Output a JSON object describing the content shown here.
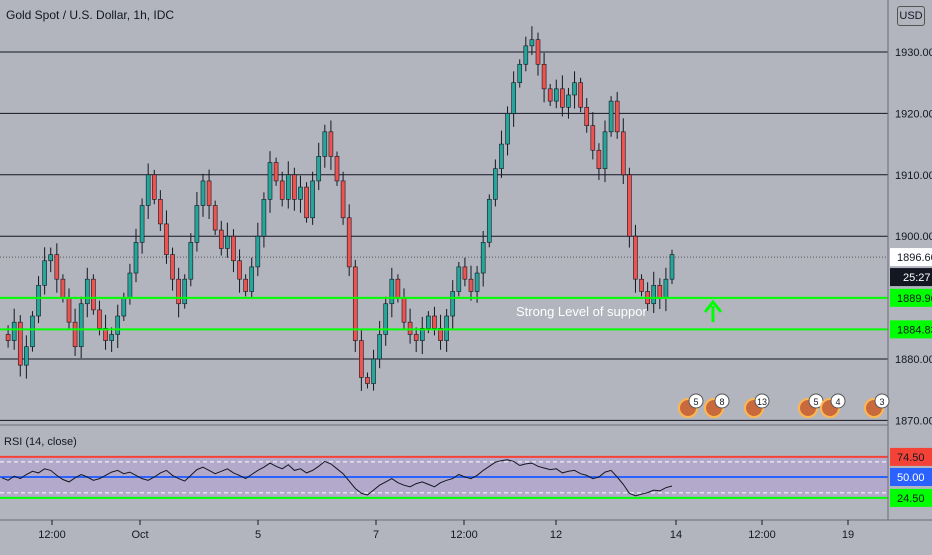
{
  "header": {
    "title": "Gold Spot / U.S. Dollar, 1h, IDC",
    "currency_button": "USD"
  },
  "annotations": {
    "support_text": "Strong Level of suppor",
    "arrow_icon": "up-arrow-icon"
  },
  "price_scale": {
    "ticks": [
      "1930.00",
      "1920.00",
      "1910.00",
      "1900.00",
      "1880.00",
      "1870.00"
    ],
    "current_price": "1896.60",
    "countdown": "25:27",
    "support_upper": "1889.96",
    "support_lower": "1884.83"
  },
  "rsi": {
    "label": "RSI (14, close)",
    "levels": [
      "74.50",
      "50.00",
      "24.50"
    ]
  },
  "time_axis": {
    "labels": [
      "12:00",
      "Oct",
      "5",
      "7",
      "12:00",
      "12",
      "14",
      "12:00",
      "19"
    ]
  },
  "event_badges": [
    {
      "count": "5"
    },
    {
      "count": "8"
    },
    {
      "count": "13"
    },
    {
      "count": "5"
    },
    {
      "count": "4"
    },
    {
      "count": "3"
    }
  ],
  "colors": {
    "background": "#b2b5be",
    "bullish": "#26a69a",
    "bearish": "#ef5350",
    "support_line": "#00ff00",
    "rsi_band": "#b39ddb",
    "rsi_mid": "#2962ff",
    "rsi_top": "#f44336"
  },
  "chart_data": {
    "type": "candlestick",
    "symbol": "Gold Spot / U.S. Dollar",
    "interval": "1h",
    "ylim": [
      1868,
      1937
    ],
    "horizontal_levels": [
      1930,
      1920,
      1910,
      1900,
      1880,
      1870
    ],
    "support_levels": [
      1889.96,
      1884.83
    ],
    "last_price": 1896.6,
    "price_path": [
      1884,
      1883,
      1886,
      1879,
      1882,
      1887,
      1892,
      1896,
      1897,
      1893,
      1890,
      1886,
      1882,
      1889,
      1893,
      1888,
      1885,
      1883,
      1884,
      1887,
      1890,
      1894,
      1899,
      1905,
      1910,
      1906,
      1902,
      1897,
      1893,
      1889,
      1893,
      1899,
      1905,
      1909,
      1905,
      1901,
      1898,
      1900,
      1896,
      1893,
      1891,
      1895,
      1900,
      1906,
      1912,
      1909,
      1906,
      1910,
      1906,
      1908,
      1903,
      1909,
      1913,
      1917,
      1913,
      1909,
      1903,
      1895,
      1883,
      1877,
      1876,
      1880,
      1884,
      1889,
      1893,
      1890,
      1886,
      1884,
      1883,
      1885,
      1887,
      1885,
      1883,
      1887,
      1891,
      1895,
      1893,
      1891,
      1894,
      1899,
      1906,
      1911,
      1915,
      1920,
      1925,
      1928,
      1931,
      1932,
      1928,
      1924,
      1922,
      1924,
      1921,
      1923,
      1925,
      1921,
      1918,
      1914,
      1911,
      1917,
      1922,
      1917,
      1910,
      1900,
      1893,
      1891,
      1889,
      1892,
      1890,
      1893,
      1897
    ],
    "rsi_series": [
      49,
      46,
      51,
      48,
      53,
      57,
      55,
      60,
      58,
      52,
      47,
      44,
      49,
      53,
      50,
      46,
      48,
      52,
      56,
      58,
      54,
      56,
      52,
      48,
      46,
      50,
      55,
      58,
      52,
      48,
      45,
      52,
      59,
      62,
      58,
      54,
      57,
      60,
      55,
      52,
      48,
      53,
      58,
      62,
      67,
      63,
      60,
      65,
      58,
      60,
      55,
      58,
      63,
      69,
      66,
      60,
      54,
      45,
      36,
      30,
      28,
      34,
      40,
      44,
      48,
      43,
      40,
      38,
      42,
      44,
      41,
      38,
      43,
      46,
      48,
      53,
      50,
      48,
      52,
      58,
      63,
      68,
      70,
      71,
      69,
      64,
      66,
      67,
      63,
      61,
      59,
      60,
      55,
      57,
      58,
      54,
      52,
      48,
      50,
      56,
      58,
      50,
      41,
      30,
      27,
      29,
      31,
      34,
      33,
      37,
      39
    ],
    "rsi_levels": {
      "upper": 74.5,
      "middle": 50,
      "lower": 24.5
    },
    "time_labels": [
      "12:00",
      "Oct",
      "5",
      "7",
      "12:00",
      "12",
      "14",
      "12:00",
      "19"
    ]
  }
}
